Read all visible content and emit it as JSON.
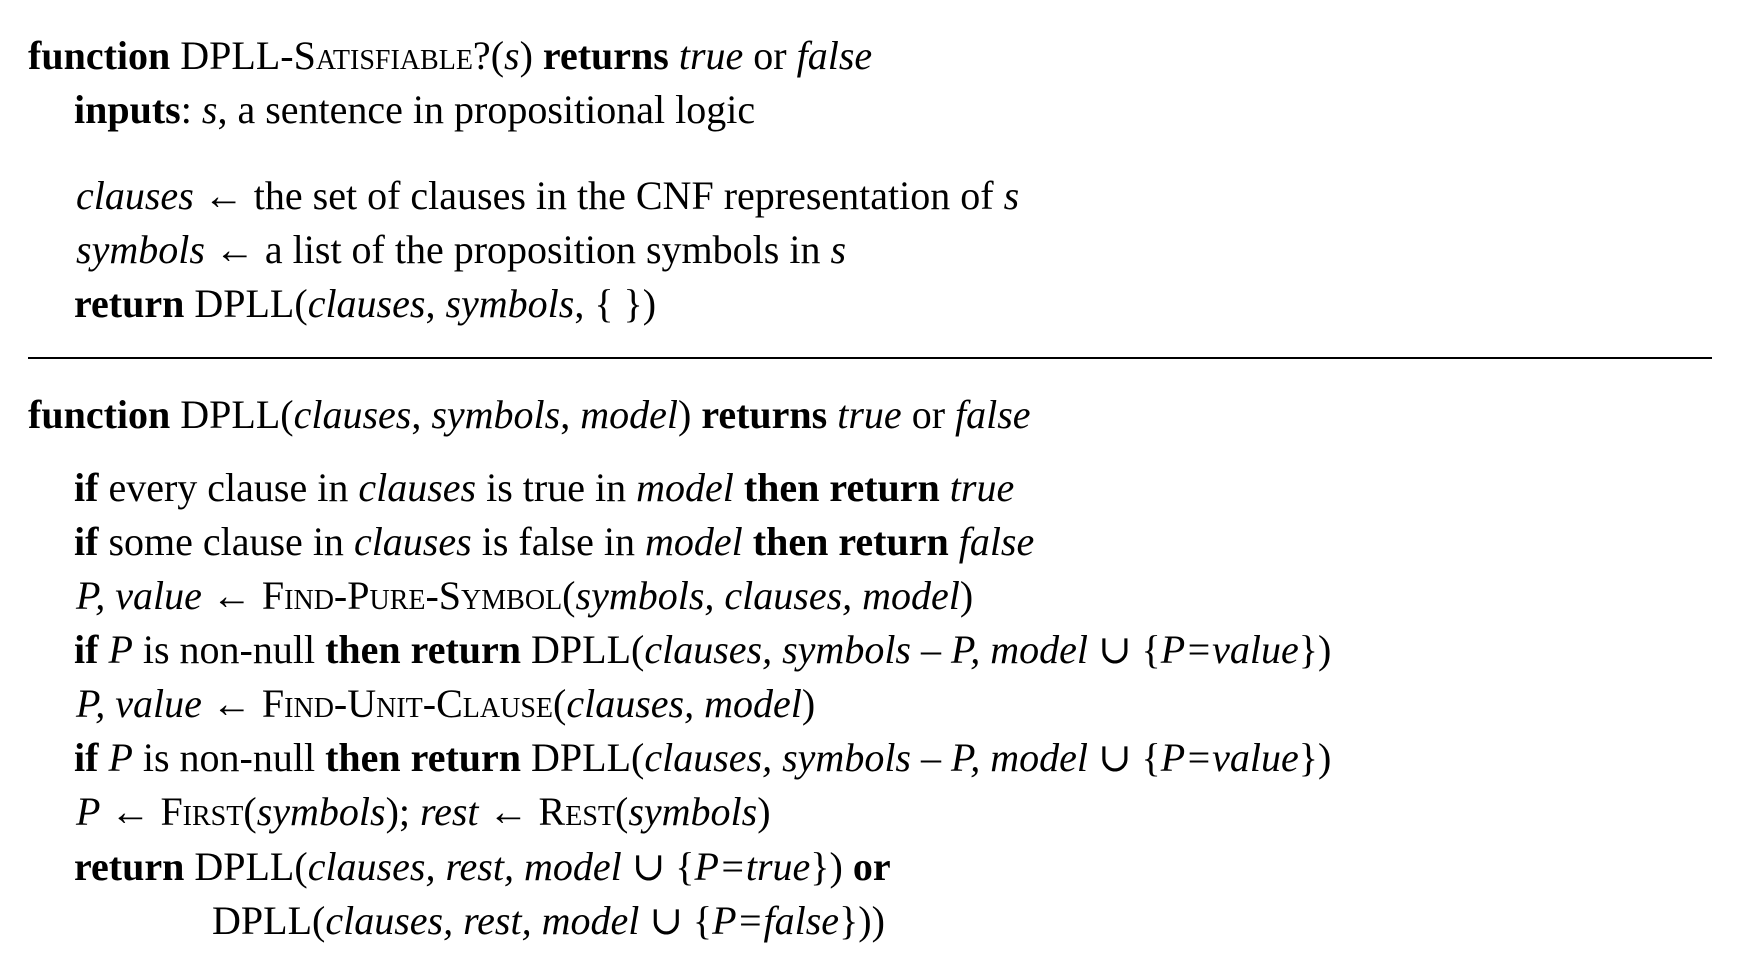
{
  "function1": {
    "header": {
      "kw_function": "function",
      "name": "DPLL-Satisfiable?",
      "open": "(",
      "param": "s",
      "close": ")",
      "kw_returns": "returns",
      "true": "true",
      "or": "or",
      "false": "false"
    },
    "inputs": {
      "kw_inputs": "inputs",
      "colon": ":",
      "var": "s",
      "text": ", a sentence in propositional logic"
    },
    "line_clauses": {
      "var": "clauses",
      "arrow": " ← ",
      "text": "the set of clauses in the CNF representation of ",
      "s": "s"
    },
    "line_symbols": {
      "var": "symbols",
      "arrow": " ← ",
      "text": "a list of the proposition symbols in ",
      "s": "s"
    },
    "line_return": {
      "kw_return": "return",
      "call": " DPLL(",
      "clauses": "clauses",
      "comma1": ", ",
      "symbols": "symbols",
      "tail": ", { })"
    }
  },
  "function2": {
    "header": {
      "kw_function": "function",
      "name": " DPLL(",
      "clauses": "clauses",
      "comma1": ", ",
      "symbols": "symbols",
      "comma2": ", ",
      "model": "model",
      "close": ") ",
      "kw_returns": "returns",
      "true": "true",
      "or": " or ",
      "false": "false"
    },
    "line1": {
      "kw_if": "if",
      "text1": " every clause in ",
      "clauses": "clauses",
      "text2": " is true in ",
      "model": "model",
      "kw_then": " then return ",
      "result": "true"
    },
    "line2": {
      "kw_if": "if",
      "text1": " some clause in ",
      "clauses": "clauses",
      "text2": " is false in ",
      "model": "model",
      "kw_then": " then return ",
      "result": "false"
    },
    "line3": {
      "lhs": "P, value",
      "arrow": " ← ",
      "fn": "Find-Pure-Symbol",
      "open": "(",
      "args": "symbols, clauses, model",
      "close": ")"
    },
    "line4": {
      "kw_if": "if",
      "p": " P",
      "text1": " is non-null ",
      "kw_then": "then return",
      "call": " DPLL(",
      "args1": "clauses, symbols",
      "minus": " – ",
      "args2": "P, model",
      "union": " ∪ {",
      "assign": "P=value",
      "close": "})"
    },
    "line5": {
      "lhs": "P, value",
      "arrow": " ← ",
      "fn": "Find-Unit-Clause",
      "open": "(",
      "args": "clauses, model",
      "close": ")"
    },
    "line6": {
      "kw_if": "if",
      "p": " P",
      "text1": " is non-null ",
      "kw_then": "then return",
      "call": " DPLL(",
      "args1": "clauses, symbols",
      "minus": " – ",
      "args2": "P, model",
      "union": " ∪ {",
      "assign": "P=value",
      "close": "})"
    },
    "line7": {
      "p": "P",
      "arrow1": " ← ",
      "fn1": "First",
      "open1": "(",
      "arg1": "symbols",
      "close1": "); ",
      "rest": "rest",
      "arrow2": " ← ",
      "fn2": "Rest",
      "open2": "(",
      "arg2": "symbols",
      "close2": ")"
    },
    "line8": {
      "kw_return": "return",
      "call": " DPLL(",
      "args": "clauses, rest, model",
      "union": " ∪ {",
      "assign": "P=true",
      "close": "}) ",
      "kw_or": "or"
    },
    "line9": {
      "call": "DPLL(",
      "args": "clauses, rest, model",
      "union": " ∪ {",
      "assign": "P=false",
      "close": "}))"
    }
  }
}
